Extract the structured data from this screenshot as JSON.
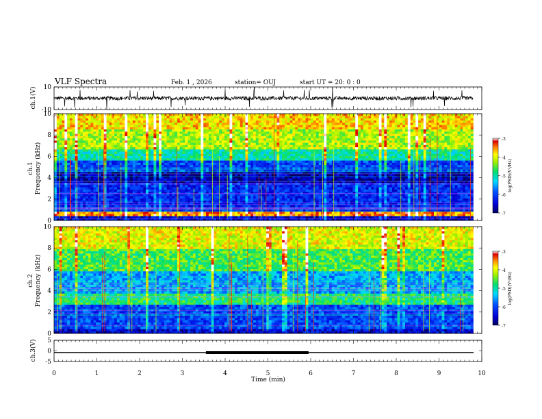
{
  "header": {
    "title": "VLF Spectra",
    "date": "Feb. 1 , 2026",
    "station": "station= OUJ",
    "start": "start  UT =   20: 0  : 0"
  },
  "chart_data": {
    "type": "heatmap",
    "title": "VLF Spectra",
    "xlabel": "Time (min)",
    "xlim": [
      0,
      10
    ],
    "x_ticks": [
      "0",
      "1",
      "2",
      "3",
      "4",
      "5",
      "6",
      "7",
      "8",
      "9",
      "10"
    ],
    "data_extent_min": 9.8,
    "panels": [
      {
        "name": "ch1-waveform",
        "ylabel": "ch.1(V)",
        "ylim": [
          -10,
          10
        ],
        "y_ticks": [
          "10",
          "-10"
        ],
        "baseline_v": 0
      },
      {
        "name": "ch1-spectrogram",
        "ylabel": "ch.1 Frequency (kHz)",
        "ylabel_top": "ch.1",
        "ylabel_bottom": "Frequency (kHz)",
        "ylim": [
          0,
          10
        ],
        "y_ticks": [
          "0",
          "2",
          "4",
          "6",
          "8",
          "10"
        ],
        "bands_khz": [
          {
            "from": 0,
            "to": 0.4,
            "level": -6.5
          },
          {
            "from": 0.4,
            "to": 0.8,
            "level": -3.5
          },
          {
            "from": 0.8,
            "to": 3.5,
            "level": -6.2
          },
          {
            "from": 3.5,
            "to": 4.5,
            "level": -6.7
          },
          {
            "from": 4.5,
            "to": 5.6,
            "level": -6.0
          },
          {
            "from": 5.6,
            "to": 6.6,
            "level": -5.0
          },
          {
            "from": 6.6,
            "to": 8.5,
            "level": -4.2
          },
          {
            "from": 8.5,
            "to": 10,
            "level": -3.8
          }
        ]
      },
      {
        "name": "ch2-spectrogram",
        "ylabel": "ch.2 Frequency (kHz)",
        "ylabel_top": "ch.2",
        "ylabel_bottom": "Frequency (kHz)",
        "ylim": [
          0,
          10
        ],
        "y_ticks": [
          "0",
          "2",
          "4",
          "6",
          "8",
          "10"
        ],
        "bands_khz": [
          {
            "from": 0,
            "to": 0.5,
            "level": -6.5
          },
          {
            "from": 0.5,
            "to": 2.8,
            "level": -6.0
          },
          {
            "from": 2.8,
            "to": 3.8,
            "level": -4.8
          },
          {
            "from": 3.8,
            "to": 5.8,
            "level": -5.5
          },
          {
            "from": 5.8,
            "to": 8.0,
            "level": -4.6
          },
          {
            "from": 8.0,
            "to": 10,
            "level": -4.0
          }
        ]
      },
      {
        "name": "ch3-waveform",
        "ylabel": "ch.3(V)",
        "ylim": [
          -5,
          5
        ],
        "y_ticks": [
          "5",
          "0",
          "-5"
        ],
        "baseline_v": -0.8,
        "thick_segment_min": [
          3.55,
          5.95
        ]
      }
    ],
    "colorbar": {
      "label": "log(PSD)(V²/Hz)",
      "range": [
        -7,
        -3
      ],
      "ticks": [
        "-3",
        "-4",
        "-5",
        "-6",
        "-7"
      ]
    }
  }
}
